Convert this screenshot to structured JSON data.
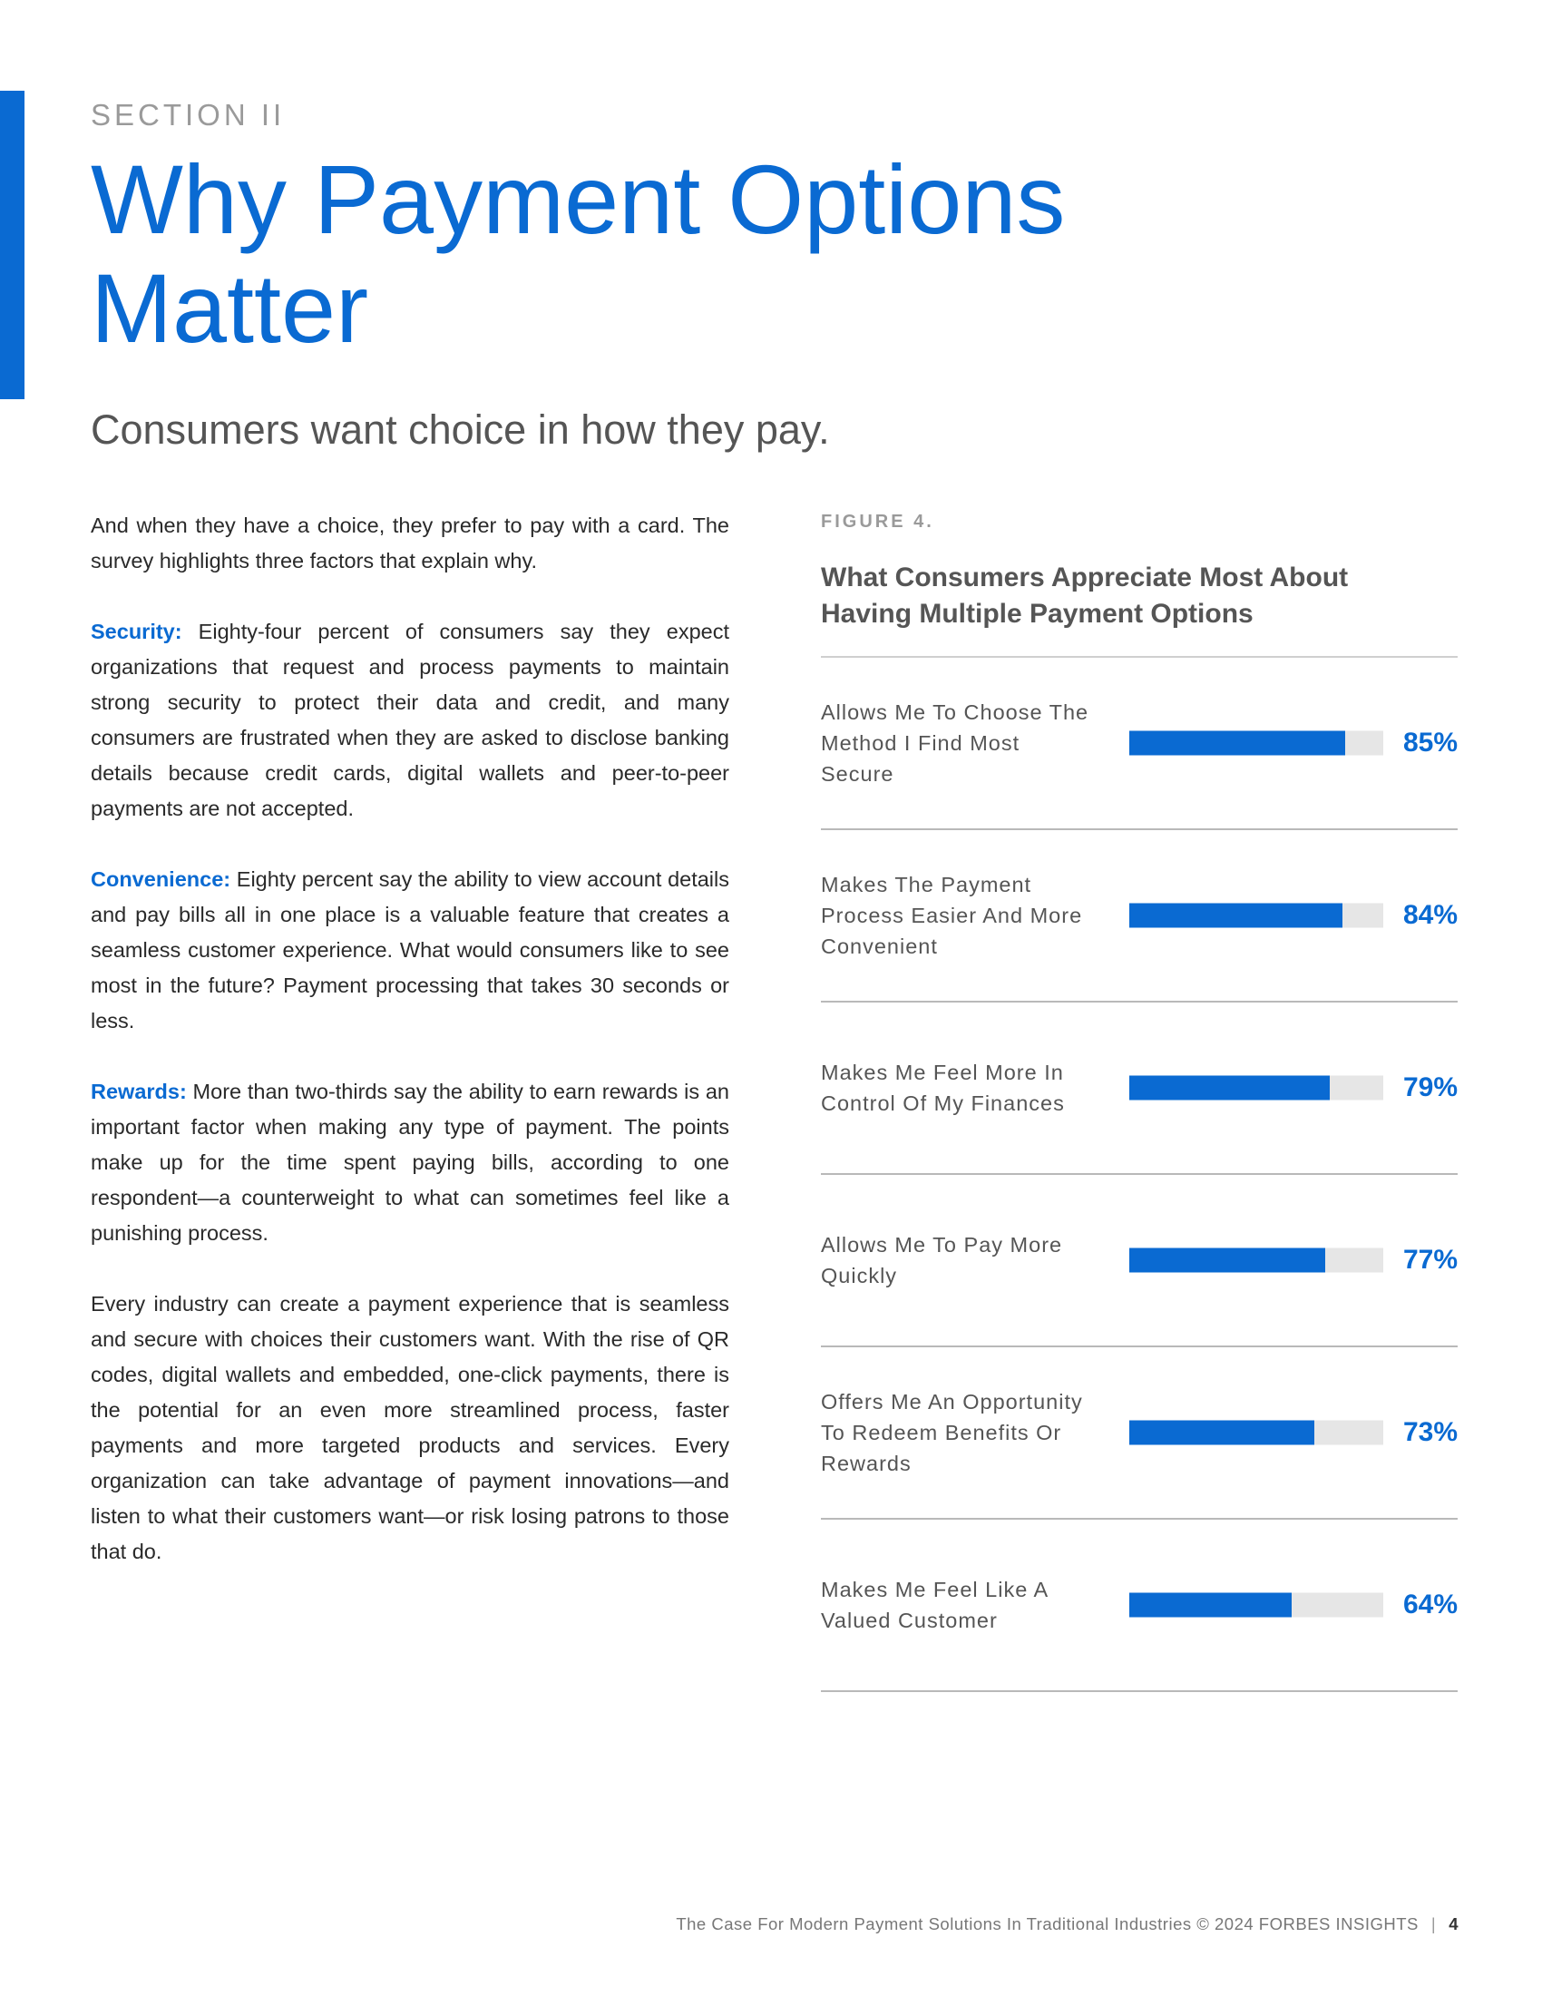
{
  "section_label": "SECTION II",
  "title": "Why Payment Options Matter",
  "subtitle": "Consumers want choice in how they pay.",
  "body": {
    "intro": "And when they have a choice, they prefer to pay with a card. The survey highlights three factors that explain why.",
    "security_lead": "Security:",
    "security_text": " Eighty-four percent of consumers say they expect organizations that request and process payments to maintain strong security to protect their data and credit, and many consumers are frustrated when they are asked to disclose banking details because credit cards, digital wallets and peer-to-peer payments are not accepted.",
    "convenience_lead": "Convenience:",
    "convenience_text": " Eighty percent say the ability to view account details and pay bills all in one place is a valuable feature that creates a seamless customer experience. What would consumers like to see most in the future? Payment processing that takes 30 seconds or less.",
    "rewards_lead": "Rewards:",
    "rewards_text": " More than two-thirds say the ability to earn rewards is an important factor when making any type of payment. The points make up for the time spent paying bills, according to one respondent—a counterweight to what can sometimes feel like a punishing process.",
    "closing": "Every industry can create a payment experience that is seamless and secure with choices their customers want. With the rise of QR codes, digital wallets and embedded, one-click payments, there is the potential for an even more streamlined process, faster payments and more targeted products and services. Every organization can take advantage of payment innovations—and listen to what their customers want—or risk losing patrons to those that do."
  },
  "figure": {
    "label": "FIGURE 4.",
    "title": "What Consumers Appreciate Most About Having Multiple Payment Options"
  },
  "chart_data": {
    "type": "bar",
    "orientation": "horizontal",
    "title": "What Consumers Appreciate Most About Having Multiple Payment Options",
    "categories": [
      "Allows Me To Choose The Method I Find Most Secure",
      "Makes The Payment Process Easier And More Convenient",
      "Makes Me Feel More In Control Of My Finances",
      "Allows Me To Pay More Quickly",
      "Offers Me An Opportunity To Redeem Benefits Or Rewards",
      "Makes Me Feel Like A Valued Customer"
    ],
    "values": [
      85,
      84,
      79,
      77,
      73,
      64
    ],
    "value_labels": [
      "85%",
      "84%",
      "79%",
      "77%",
      "73%",
      "64%"
    ],
    "xlim": [
      0,
      100
    ],
    "bar_color": "#0a6ad2",
    "track_color": "#e6e6e6"
  },
  "footer": {
    "text": "The Case For Modern Payment Solutions In Traditional Industries © 2024 FORBES INSIGHTS",
    "separator": "|",
    "page_number": "4"
  },
  "colors": {
    "accent": "#0a6ad2"
  }
}
